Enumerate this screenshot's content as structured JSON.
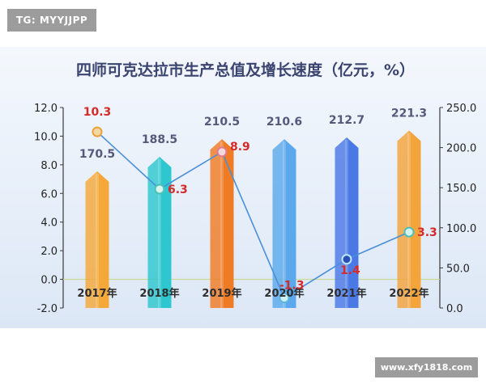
{
  "watermarks": {
    "top_left": "TG: MYYJJPP",
    "bottom_right": "www.xfy1818.com"
  },
  "chart_data": {
    "type": "bar",
    "title": "四师可克达拉市生产总值及增长速度（亿元，%）",
    "categories": [
      "2017年",
      "2018年",
      "2019年",
      "2020年",
      "2021年",
      "2022年"
    ],
    "series": [
      {
        "type": "bar",
        "axis": "right",
        "values": [
          170.5,
          188.5,
          210.5,
          210.6,
          212.7,
          221.3
        ],
        "colors": [
          "#f4a83a",
          "#2ec7cf",
          "#f07b25",
          "#5ba9ec",
          "#4a79e6",
          "#f3a43b"
        ]
      },
      {
        "type": "line",
        "axis": "left",
        "values": [
          10.3,
          6.3,
          8.9,
          -1.3,
          1.4,
          3.3
        ],
        "color": "#4a90d9"
      }
    ],
    "bar_labels": [
      "170.5",
      "188.5",
      "210.5",
      "210.6",
      "212.7",
      "221.3"
    ],
    "line_labels": [
      "10.3",
      "6.3",
      "8.9",
      "-1.3",
      "1.4",
      "3.3"
    ],
    "left_axis": {
      "range": [
        -2.0,
        12.0
      ],
      "ticks": [
        "-2.0",
        "0.0",
        "2.0",
        "4.0",
        "6.0",
        "8.0",
        "10.0",
        "12.0"
      ]
    },
    "right_axis": {
      "range": [
        0,
        250
      ],
      "ticks": [
        "0.0",
        "50.0",
        "100.0",
        "150.0",
        "200.0",
        "250.0"
      ]
    },
    "grid": false,
    "legend": "none",
    "colors": {
      "background": "#e3ecf9",
      "title": "#3b4470",
      "line_label": "#d42a2a",
      "bar_label": "#555a7a"
    }
  }
}
